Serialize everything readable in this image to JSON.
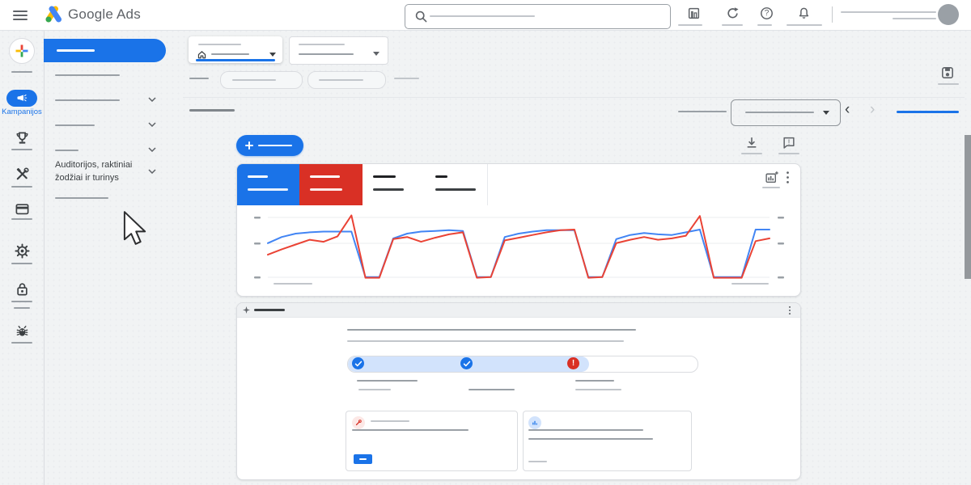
{
  "topbar": {
    "brand": "Google Ads"
  },
  "rail": {
    "campaigns_label": "Kampanijos"
  },
  "subnav": {
    "audiences_label": "Auditorijos, raktiniai žodžiai ir turinys"
  },
  "icons": {
    "help_glyph": "?",
    "feedback_glyph": "!",
    "error_glyph": "!"
  },
  "colors": {
    "accent_blue": "#1a73e8",
    "tab_red": "#d93025",
    "chart_blue": "#4285f4",
    "chart_red": "#ea4335",
    "progress_fill_blue": "#d2e3fc",
    "error_red": "#d93025",
    "icon_gray": "#5f6368"
  },
  "chart_data": {
    "type": "line",
    "title": "",
    "xlabel": "",
    "ylabel": "",
    "ylim": [
      0,
      100
    ],
    "grid": true,
    "gridline_values": [
      7,
      56,
      93
    ],
    "series": [
      {
        "name": "blue",
        "color": "#4285f4",
        "values": [
          55,
          64,
          69,
          71,
          72,
          72,
          72,
          5,
          5,
          62,
          69,
          72,
          73,
          74,
          73,
          5,
          5,
          64,
          69,
          72,
          74,
          74,
          74,
          5,
          5,
          61,
          67,
          70,
          68,
          67,
          71,
          75,
          5,
          5,
          5,
          75,
          75
        ]
      },
      {
        "name": "red",
        "color": "#ea4335",
        "values": [
          38,
          46,
          53,
          60,
          57,
          65,
          96,
          4,
          4,
          61,
          64,
          57,
          63,
          68,
          71,
          4,
          5,
          59,
          63,
          67,
          71,
          74,
          75,
          4,
          5,
          55,
          60,
          64,
          60,
          62,
          66,
          95,
          4,
          4,
          4,
          58,
          62
        ]
      }
    ]
  },
  "progress": {
    "fill_percent": 69,
    "steps": [
      {
        "state": "complete"
      },
      {
        "state": "complete"
      },
      {
        "state": "error"
      }
    ]
  }
}
